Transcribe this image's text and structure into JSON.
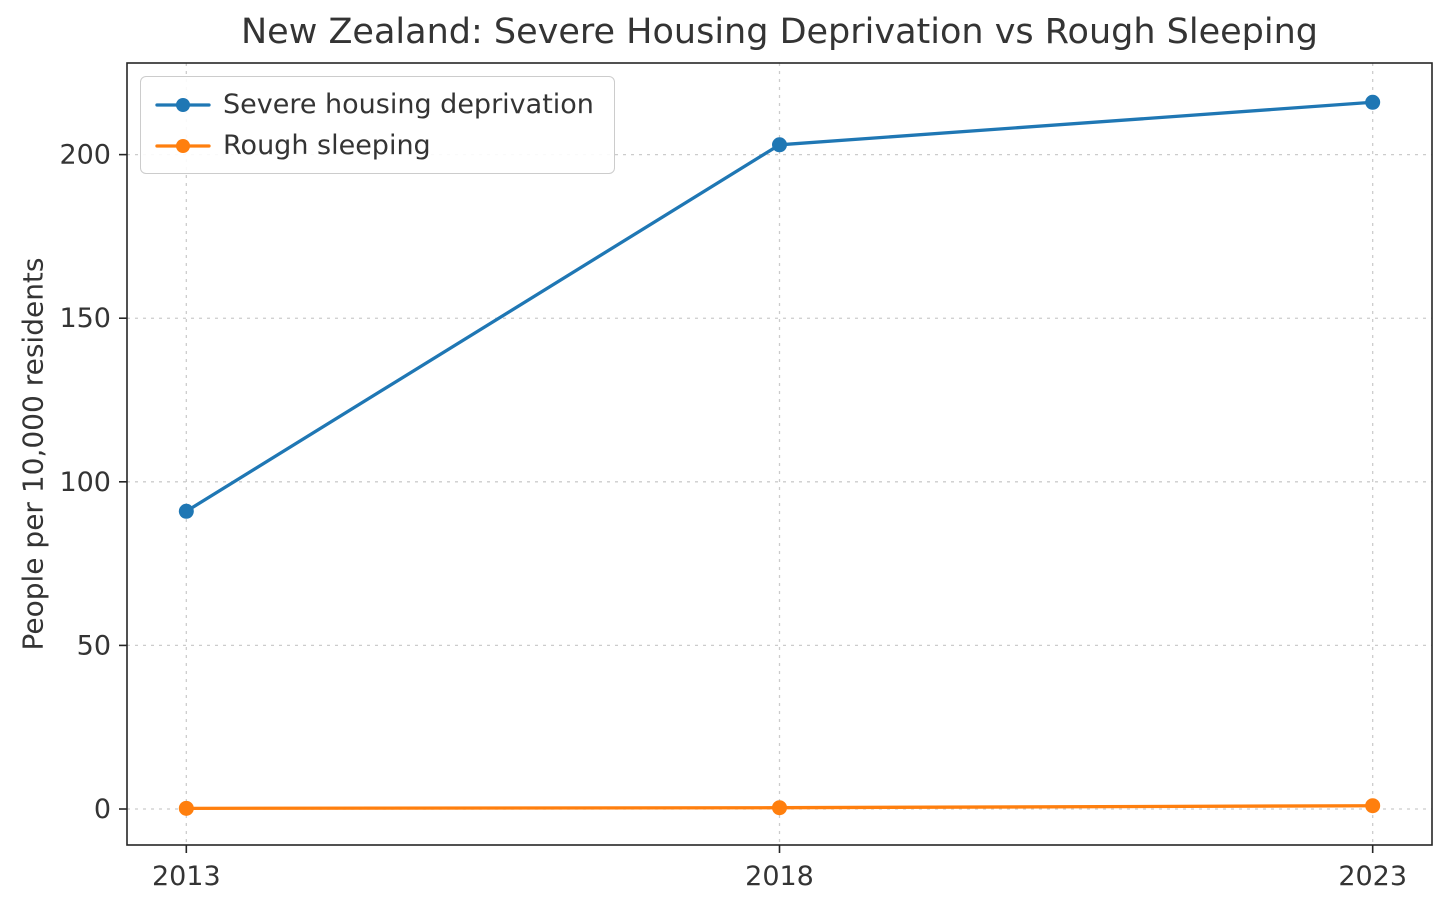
{
  "chart_data": {
    "type": "line",
    "title": "New Zealand: Severe Housing Deprivation vs Rough Sleeping",
    "xlabel": "",
    "ylabel": "People per 10,000 residents",
    "x": [
      2013,
      2018,
      2023
    ],
    "series": [
      {
        "name": "Severe housing deprivation",
        "color": "#1f77b4",
        "values": [
          91,
          203,
          216
        ]
      },
      {
        "name": "Rough sleeping",
        "color": "#ff7f0e",
        "values": [
          0.2,
          0.4,
          1
        ]
      }
    ],
    "xticks": [
      2013,
      2018,
      2023
    ],
    "yticks": [
      0,
      50,
      100,
      150,
      200
    ],
    "xlim": [
      2012.5,
      2023.5
    ],
    "ylim": [
      -11,
      228
    ],
    "grid": true,
    "grid_style": "dashed",
    "legend_position": "upper left",
    "colors": {
      "grid": "#cccccc",
      "spine": "#262626",
      "text": "#343434",
      "background": "#ffffff"
    }
  }
}
